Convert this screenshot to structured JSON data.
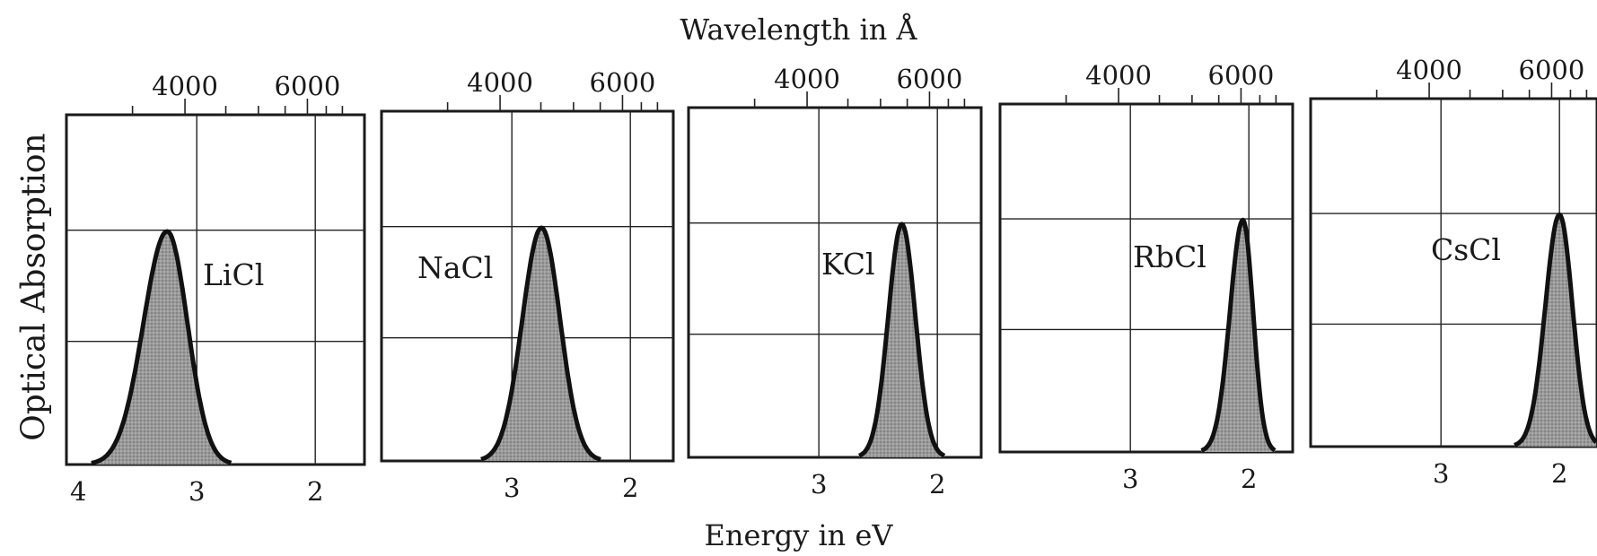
{
  "figure": {
    "top_axis_label": "Wavelength in Å",
    "bottom_axis_label": "Energy in eV",
    "y_axis_label": "Optical Absorption"
  },
  "chart_data": {
    "type": "area",
    "x_axis": {
      "label": "Energy in eV",
      "direction": "decreasing",
      "range": [
        4.1,
        1.6
      ]
    },
    "secondary_x_axis": {
      "label": "Wavelength in Å",
      "ticks": [
        4000,
        6000
      ],
      "minor_ticks": [
        3000,
        3500,
        4500,
        5000,
        5500,
        6500,
        7000
      ]
    },
    "y_axis": {
      "label": "Optical Absorption",
      "range": [
        0,
        1
      ],
      "grid": [
        0.33,
        0.67
      ]
    },
    "grid": true,
    "panels": [
      {
        "name": "LiCl",
        "energy_ticks": [
          "4",
          "3",
          "2"
        ],
        "peak_eV": 3.25,
        "width_left": 0.42,
        "width_right": 0.36
      },
      {
        "name": "NaCl",
        "energy_ticks": [
          "3",
          "2"
        ],
        "peak_eV": 2.75,
        "width_left": 0.34,
        "width_right": 0.33
      },
      {
        "name": "KCl",
        "energy_ticks": [
          "3",
          "2"
        ],
        "peak_eV": 2.3,
        "width_left": 0.24,
        "width_right": 0.24
      },
      {
        "name": "RbCl",
        "energy_ticks": [
          "3",
          "2"
        ],
        "peak_eV": 2.05,
        "width_left": 0.23,
        "width_right": 0.18
      },
      {
        "name": "CsCl",
        "energy_ticks": [
          "3",
          "2"
        ],
        "peak_eV": 2.0,
        "width_left": 0.25,
        "width_right": 0.23
      }
    ]
  }
}
